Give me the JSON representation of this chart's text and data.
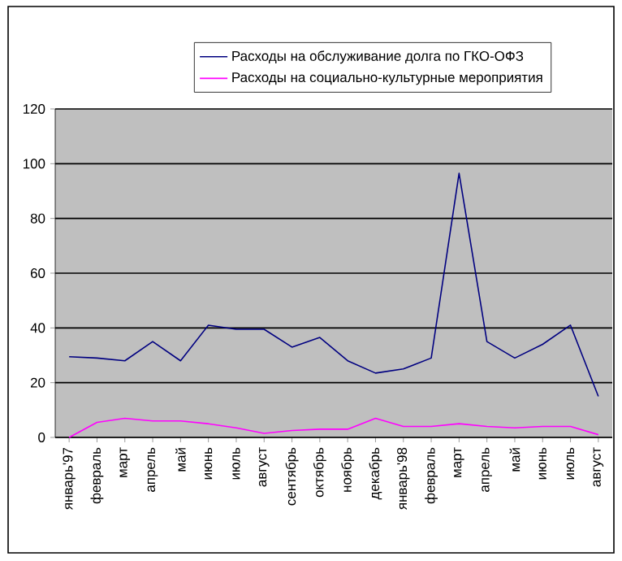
{
  "chart_data": {
    "type": "line",
    "categories": [
      "январь'97",
      "февраль",
      "март",
      "апрель",
      "май",
      "июнь",
      "июль",
      "август",
      "сентябрь",
      "октябрь",
      "ноябрь",
      "декабрь",
      "январь'98",
      "февраль",
      "март",
      "апрель",
      "май",
      "июнь",
      "июль",
      "август"
    ],
    "series": [
      {
        "name": "Расходы на обслуживание долга по ГКО-ОФЗ",
        "color": "#000080",
        "values": [
          29.5,
          29,
          28,
          35,
          28,
          41,
          39.5,
          39.5,
          33,
          36.5,
          28,
          23.5,
          25,
          29,
          96.5,
          35,
          29,
          34,
          41,
          15
        ]
      },
      {
        "name": "Расходы на социально-культурные мероприятия",
        "color": "#ff00ff",
        "values": [
          0,
          5.5,
          7,
          6,
          6,
          5,
          3.5,
          1.5,
          2.5,
          3,
          3,
          7,
          4,
          4,
          5,
          4,
          3.5,
          4,
          4,
          1
        ]
      }
    ],
    "ylim": [
      0,
      120
    ],
    "yticks": [
      0,
      20,
      40,
      60,
      80,
      100,
      120
    ],
    "grid": "y",
    "legend": "top",
    "marker": "none",
    "line_style": "solid"
  }
}
